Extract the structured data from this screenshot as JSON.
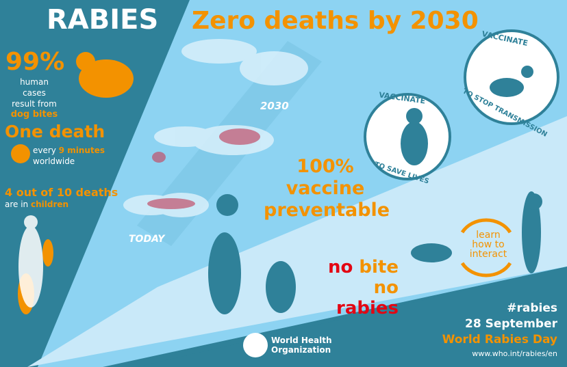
{
  "colors": {
    "teal": "#2f8199",
    "light_blue": "#8dd3f2",
    "pale_blue": "#c9e9f9",
    "orange": "#f39200",
    "red": "#e30613"
  },
  "title": "RABIES",
  "headline": "Zero deaths by 2030",
  "stats": {
    "pct": "99%",
    "pct_line1": "human cases",
    "pct_line2": "result from",
    "pct_line3": "dog bites",
    "death_title": "One death",
    "death_every": "every",
    "death_minutes": "9 minutes",
    "death_world": "worldwide",
    "children_title": "4 out of 10 deaths",
    "children_are": "are in",
    "children_word": "children"
  },
  "map_labels": {
    "future": "2030",
    "today": "TODAY"
  },
  "vaccinate_save": {
    "top": "VACCINATE",
    "bottom": "TO SAVE LIVES"
  },
  "vaccinate_stop": {
    "top": "VACCINATE",
    "bottom": "TO STOP TRANSMISSION"
  },
  "preventable": {
    "line1": "100%",
    "line2": "vaccine",
    "line3": "preventable"
  },
  "interact": {
    "line1": "learn",
    "line2": "how to",
    "line3": "interact"
  },
  "no_bite": {
    "no1": "no",
    "bite": "bite",
    "no2": "no",
    "rabies": "rabies"
  },
  "footer": {
    "hashtag": "#rabies",
    "date": "28 September",
    "event": "World Rabies Day",
    "url": "www.who.int/rabies/en",
    "org_line1": "World Health",
    "org_line2": "Organization"
  }
}
